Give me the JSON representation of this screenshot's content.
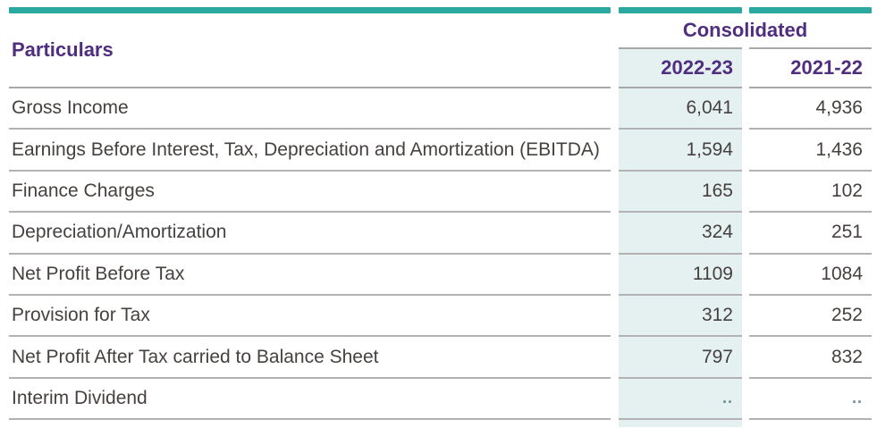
{
  "table": {
    "header": {
      "particulars_label": "Particulars",
      "group_label": "Consolidated",
      "year_col_1": "2022-23",
      "year_col_2": "2021-22"
    },
    "rows": [
      {
        "label": "Gross Income",
        "v1": "6,041",
        "v2": "4,936"
      },
      {
        "label": "Earnings Before Interest, Tax, Depreciation and Amortization (EBITDA)",
        "v1": "1,594",
        "v2": "1,436"
      },
      {
        "label": "Finance Charges",
        "v1": "165",
        "v2": "102"
      },
      {
        "label": "Depreciation/Amortization",
        "v1": "324",
        "v2": "251"
      },
      {
        "label": "Net Profit Before Tax",
        "v1": "1109",
        "v2": "1084"
      },
      {
        "label": "Provision for Tax",
        "v1": "312",
        "v2": "252"
      },
      {
        "label": "Net Profit After Tax carried to Balance Sheet",
        "v1": "797",
        "v2": "832"
      },
      {
        "label": "Interim Dividend",
        "v1": "..",
        "v2": ".."
      }
    ],
    "colors": {
      "accent_teal": "#2ba9a1",
      "highlight_column_bg": "#e4f1f0",
      "header_text_purple": "#4f2d7f",
      "body_text": "#46413f",
      "gridline_gray": "#b3b1b1",
      "dots_muted": "#6e8d94"
    }
  }
}
